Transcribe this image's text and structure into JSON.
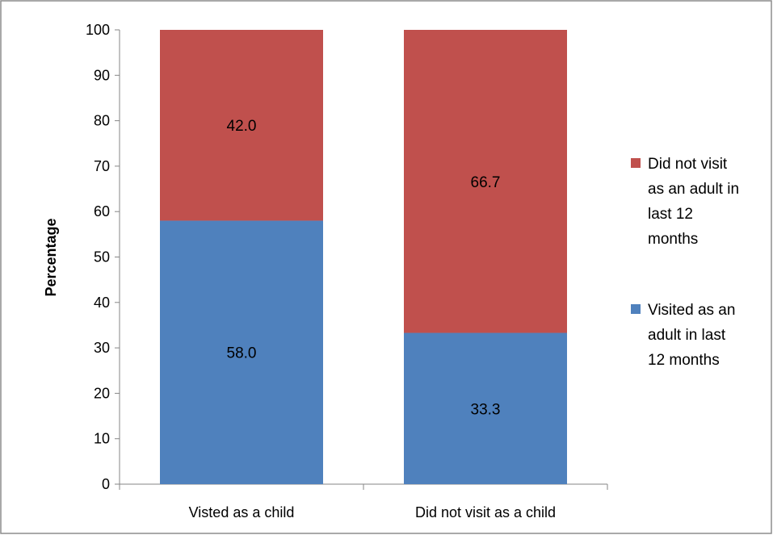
{
  "chart_data": {
    "type": "bar",
    "stacked": true,
    "title": "",
    "xlabel": "",
    "ylabel": "Percentage",
    "ylim": [
      0,
      100
    ],
    "yticks": [
      0,
      10,
      20,
      30,
      40,
      50,
      60,
      70,
      80,
      90,
      100
    ],
    "categories": [
      "Visted as a child",
      "Did not visit as a child"
    ],
    "series": [
      {
        "name": "Visited as an adult in last 12 months",
        "values": [
          58.0,
          33.3
        ],
        "labels": [
          "58.0",
          "33.3"
        ],
        "color": "#4F81BD"
      },
      {
        "name": "Did not visit as an adult in last 12 months",
        "values": [
          42.0,
          66.7
        ],
        "labels": [
          "42.0",
          "66.7"
        ],
        "color": "#C0504D"
      }
    ],
    "legend": {
      "position": "right",
      "entries": [
        {
          "series": 1,
          "lines": [
            "Did not visit",
            "as an adult in",
            "last 12",
            "months"
          ]
        },
        {
          "series": 0,
          "lines": [
            "Visited as an",
            "adult in last",
            "12 months"
          ]
        }
      ]
    },
    "grid": false
  }
}
